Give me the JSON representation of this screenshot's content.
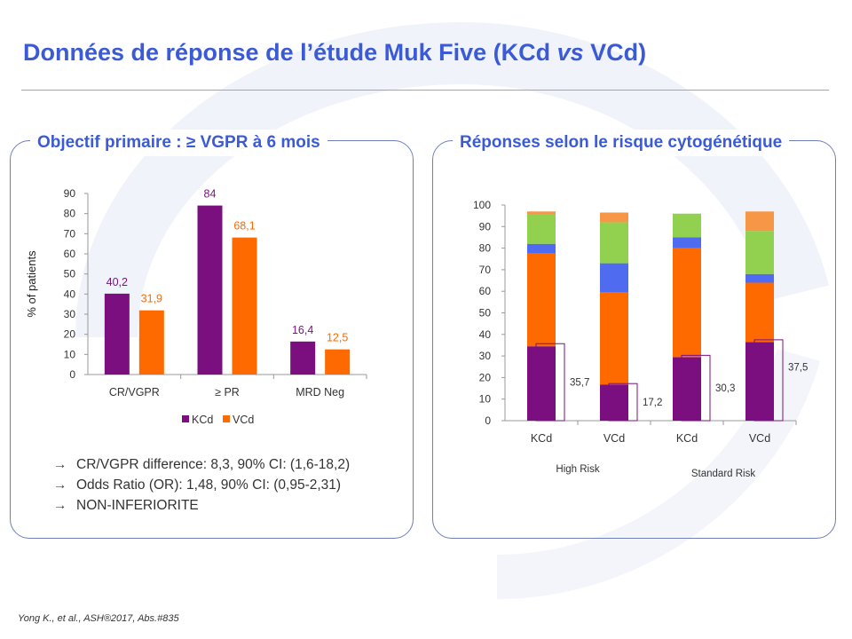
{
  "slide": {
    "title": "Données de réponse de l’étude Muk Five (KCd vs VCd)",
    "title_main": "Données de réponse de l’étude Muk Five (KCd ",
    "title_vs": "vs",
    "title_end": " VCd)",
    "citation": "Yong K., et al., ASH®2017, Abs.#835"
  },
  "left_panel": {
    "heading": "Objectif primaire : ≥ VGPR à 6 mois",
    "bullets": [
      "CR/VGPR difference: 8,3, 90% CI: (1,6-18,2)",
      "Odds Ratio (OR): 1,48, 90% CI: (0,95-2,31)",
      "NON-INFERIORITE"
    ],
    "arrow_glyph": "→"
  },
  "right_panel": {
    "heading": "Réponses selon le risque cytogénétique"
  },
  "colors": {
    "kcd": "#7b0f7f",
    "vcd": "#ff6a00",
    "blue": "#4f6bf0",
    "green": "#92d050",
    "light_orange": "#f79646",
    "title": "#3b5bd6"
  },
  "chart_data": [
    {
      "type": "bar",
      "title": "",
      "xlabel": "",
      "ylabel": "% of patients",
      "ylim": [
        0,
        90
      ],
      "yticks": [
        0,
        10,
        20,
        30,
        40,
        50,
        60,
        70,
        80,
        90
      ],
      "categories": [
        "CR/VGPR",
        "≥ PR",
        "MRD Neg"
      ],
      "series": [
        {
          "name": "KCd",
          "values": [
            40.2,
            84,
            16.4
          ],
          "labels": [
            "40,2",
            "84",
            "16,4"
          ],
          "color": "#7b0f7f"
        },
        {
          "name": "VCd",
          "values": [
            31.9,
            68.1,
            12.5
          ],
          "labels": [
            "31,9",
            "68,1",
            "12,5"
          ],
          "color": "#ff6a00"
        }
      ],
      "legend": "bottom",
      "grid": false
    },
    {
      "type": "bar",
      "stacked": true,
      "title": "",
      "ylim": [
        0,
        100
      ],
      "yticks": [
        0,
        10,
        20,
        30,
        40,
        50,
        60,
        70,
        80,
        90,
        100
      ],
      "categories": [
        "KCd",
        "VCd",
        "KCd",
        "VCd"
      ],
      "groups": [
        {
          "label": "High Risk",
          "columns": [
            0,
            1
          ]
        },
        {
          "label": "Standard Risk",
          "columns": [
            2,
            3
          ]
        }
      ],
      "stacks": [
        {
          "color": "#7b0f7f",
          "values": [
            34.5,
            16.8,
            29.5,
            36.5
          ]
        },
        {
          "color": "#ff6a00",
          "values": [
            43,
            42.7,
            50.5,
            27.5
          ]
        },
        {
          "color": "#4f6bf0",
          "values": [
            4.5,
            13.5,
            5,
            4
          ]
        },
        {
          "color": "#92d050",
          "values": [
            13.5,
            19,
            11,
            20
          ]
        },
        {
          "color": "#f79646",
          "values": [
            1.5,
            4.5,
            0,
            9
          ]
        }
      ],
      "outlined": {
        "values": [
          35.7,
          17.2,
          30.3,
          37.5
        ],
        "labels": [
          "35,7",
          "17,2",
          "30,3",
          "37,5"
        ]
      },
      "legend": "none",
      "grid": false
    }
  ]
}
